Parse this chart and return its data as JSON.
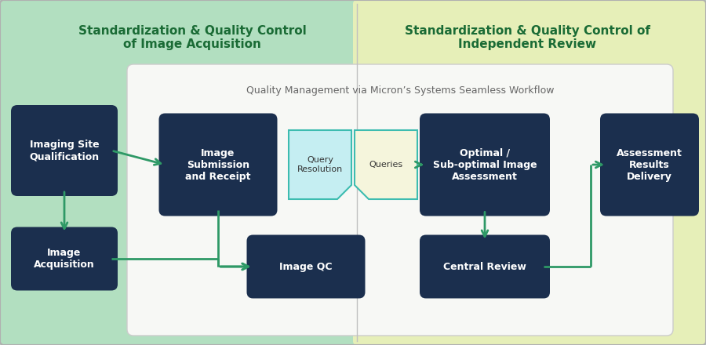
{
  "bg_left_color": "#b2dfc0",
  "bg_right_color": "#e6efb8",
  "dark_box_color": "#1b2f4e",
  "query_res_color": "#c5eef2",
  "queries_color": "#f5f5dc",
  "arrow_color": "#2e9966",
  "border_color": "#3dbcb0",
  "title_left": "Standardization & Quality Control\nof Image Acquisition",
  "title_right": "Standardization & Quality Control of\nIndependent Review",
  "inner_title": "Quality Management via Micron’s Systems Seamless Workflow"
}
